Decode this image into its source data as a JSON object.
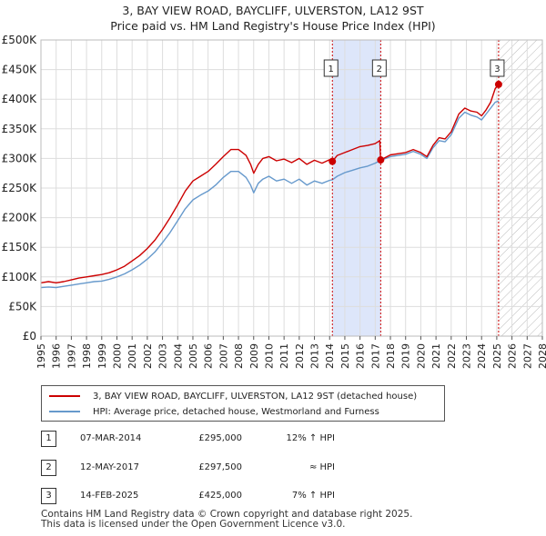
{
  "title": {
    "line1": "3, BAY VIEW ROAD, BAYCLIFF, ULVERSTON, LA12 9ST",
    "line2": "Price paid vs. HM Land Registry's House Price Index (HPI)"
  },
  "chart_data": {
    "type": "line",
    "xlim": [
      1995,
      2028
    ],
    "ylim": [
      0,
      500000
    ],
    "yticks": [
      {
        "value": 0,
        "label": "£0"
      },
      {
        "value": 50000,
        "label": "£50K"
      },
      {
        "value": 100000,
        "label": "£100K"
      },
      {
        "value": 150000,
        "label": "£150K"
      },
      {
        "value": 200000,
        "label": "£200K"
      },
      {
        "value": 250000,
        "label": "£250K"
      },
      {
        "value": 300000,
        "label": "£300K"
      },
      {
        "value": 350000,
        "label": "£350K"
      },
      {
        "value": 400000,
        "label": "£400K"
      },
      {
        "value": 450000,
        "label": "£450K"
      },
      {
        "value": 500000,
        "label": "£500K"
      }
    ],
    "xticks": [
      "1995",
      "1996",
      "1997",
      "1998",
      "1999",
      "2000",
      "2001",
      "2002",
      "2003",
      "2004",
      "2005",
      "2006",
      "2007",
      "2008",
      "2009",
      "2010",
      "2011",
      "2012",
      "2013",
      "2014",
      "2015",
      "2016",
      "2017",
      "2018",
      "2019",
      "2020",
      "2021",
      "2022",
      "2023",
      "2024",
      "2025",
      "2026",
      "2027",
      "2028"
    ],
    "grid": true,
    "highlight_band": {
      "from": 2014.18,
      "to": 2017.36
    },
    "future_hatch_from": 2025.12,
    "series": [
      {
        "name": "3, BAY VIEW ROAD, BAYCLIFF, ULVERSTON, LA12 9ST (detached house)",
        "color": "#cc0000",
        "points": [
          [
            1995.0,
            90000
          ],
          [
            1995.5,
            92000
          ],
          [
            1996.0,
            90000
          ],
          [
            1996.5,
            92000
          ],
          [
            1997.0,
            95000
          ],
          [
            1997.5,
            98000
          ],
          [
            1998.0,
            100000
          ],
          [
            1998.5,
            102000
          ],
          [
            1999.0,
            104000
          ],
          [
            1999.5,
            107000
          ],
          [
            2000.0,
            112000
          ],
          [
            2000.5,
            118000
          ],
          [
            2001.0,
            127000
          ],
          [
            2001.5,
            136000
          ],
          [
            2002.0,
            148000
          ],
          [
            2002.5,
            162000
          ],
          [
            2003.0,
            180000
          ],
          [
            2003.5,
            200000
          ],
          [
            2004.0,
            222000
          ],
          [
            2004.5,
            245000
          ],
          [
            2005.0,
            262000
          ],
          [
            2005.5,
            270000
          ],
          [
            2006.0,
            278000
          ],
          [
            2006.5,
            290000
          ],
          [
            2007.0,
            303000
          ],
          [
            2007.5,
            315000
          ],
          [
            2008.0,
            315000
          ],
          [
            2008.5,
            305000
          ],
          [
            2008.8,
            290000
          ],
          [
            2009.0,
            275000
          ],
          [
            2009.3,
            290000
          ],
          [
            2009.6,
            300000
          ],
          [
            2010.0,
            303000
          ],
          [
            2010.5,
            296000
          ],
          [
            2011.0,
            299000
          ],
          [
            2011.5,
            293000
          ],
          [
            2012.0,
            300000
          ],
          [
            2012.5,
            290000
          ],
          [
            2013.0,
            297000
          ],
          [
            2013.5,
            292000
          ],
          [
            2014.0,
            298000
          ],
          [
            2014.18,
            295000
          ],
          [
            2014.5,
            305000
          ],
          [
            2015.0,
            310000
          ],
          [
            2015.5,
            315000
          ],
          [
            2016.0,
            320000
          ],
          [
            2016.5,
            322000
          ],
          [
            2017.0,
            325000
          ],
          [
            2017.3,
            330000
          ],
          [
            2017.36,
            297500
          ],
          [
            2017.7,
            302000
          ],
          [
            2018.0,
            306000
          ],
          [
            2018.5,
            308000
          ],
          [
            2019.0,
            310000
          ],
          [
            2019.5,
            315000
          ],
          [
            2020.0,
            310000
          ],
          [
            2020.4,
            303000
          ],
          [
            2020.8,
            322000
          ],
          [
            2021.2,
            335000
          ],
          [
            2021.6,
            333000
          ],
          [
            2022.0,
            345000
          ],
          [
            2022.5,
            375000
          ],
          [
            2022.9,
            385000
          ],
          [
            2023.3,
            380000
          ],
          [
            2023.7,
            378000
          ],
          [
            2024.0,
            372000
          ],
          [
            2024.3,
            382000
          ],
          [
            2024.6,
            395000
          ],
          [
            2024.9,
            418000
          ],
          [
            2025.12,
            425000
          ]
        ]
      },
      {
        "name": "HPI: Average price, detached house, Westmorland and Furness",
        "color": "#6699cc",
        "points": [
          [
            1995.0,
            82000
          ],
          [
            1995.5,
            83000
          ],
          [
            1996.0,
            82000
          ],
          [
            1996.5,
            84000
          ],
          [
            1997.0,
            86000
          ],
          [
            1997.5,
            88000
          ],
          [
            1998.0,
            90000
          ],
          [
            1998.5,
            92000
          ],
          [
            1999.0,
            93000
          ],
          [
            1999.5,
            96000
          ],
          [
            2000.0,
            100000
          ],
          [
            2000.5,
            105000
          ],
          [
            2001.0,
            112000
          ],
          [
            2001.5,
            120000
          ],
          [
            2002.0,
            130000
          ],
          [
            2002.5,
            142000
          ],
          [
            2003.0,
            158000
          ],
          [
            2003.5,
            175000
          ],
          [
            2004.0,
            195000
          ],
          [
            2004.5,
            215000
          ],
          [
            2005.0,
            230000
          ],
          [
            2005.5,
            238000
          ],
          [
            2006.0,
            245000
          ],
          [
            2006.5,
            255000
          ],
          [
            2007.0,
            268000
          ],
          [
            2007.5,
            278000
          ],
          [
            2008.0,
            278000
          ],
          [
            2008.5,
            268000
          ],
          [
            2008.8,
            255000
          ],
          [
            2009.0,
            242000
          ],
          [
            2009.3,
            258000
          ],
          [
            2009.6,
            265000
          ],
          [
            2010.0,
            270000
          ],
          [
            2010.5,
            262000
          ],
          [
            2011.0,
            265000
          ],
          [
            2011.5,
            258000
          ],
          [
            2012.0,
            265000
          ],
          [
            2012.5,
            255000
          ],
          [
            2013.0,
            262000
          ],
          [
            2013.5,
            258000
          ],
          [
            2014.0,
            263000
          ],
          [
            2014.18,
            264000
          ],
          [
            2014.5,
            270000
          ],
          [
            2015.0,
            276000
          ],
          [
            2015.5,
            280000
          ],
          [
            2016.0,
            284000
          ],
          [
            2016.5,
            287000
          ],
          [
            2017.0,
            292000
          ],
          [
            2017.36,
            297000
          ],
          [
            2017.7,
            300000
          ],
          [
            2018.0,
            303000
          ],
          [
            2018.5,
            305000
          ],
          [
            2019.0,
            307000
          ],
          [
            2019.5,
            312000
          ],
          [
            2020.0,
            307000
          ],
          [
            2020.4,
            300000
          ],
          [
            2020.8,
            318000
          ],
          [
            2021.2,
            330000
          ],
          [
            2021.6,
            328000
          ],
          [
            2022.0,
            340000
          ],
          [
            2022.5,
            368000
          ],
          [
            2022.9,
            378000
          ],
          [
            2023.3,
            373000
          ],
          [
            2023.7,
            370000
          ],
          [
            2024.0,
            365000
          ],
          [
            2024.3,
            375000
          ],
          [
            2024.6,
            385000
          ],
          [
            2024.9,
            395000
          ],
          [
            2025.12,
            397000
          ]
        ]
      }
    ]
  },
  "legend": {
    "property_label": "3, BAY VIEW ROAD, BAYCLIFF, ULVERSTON, LA12 9ST (detached house)",
    "hpi_label": "HPI: Average price, detached house, Westmorland and Furness"
  },
  "sales": [
    {
      "num": "1",
      "date": "07-MAR-2014",
      "price": "£295,000",
      "hpi": "12% ↑ HPI",
      "year": 2014.18,
      "value": 295000
    },
    {
      "num": "2",
      "date": "12-MAY-2017",
      "price": "£297,500",
      "hpi": "≈ HPI",
      "year": 2017.36,
      "value": 297500
    },
    {
      "num": "3",
      "date": "14-FEB-2025",
      "price": "£425,000",
      "hpi": "7% ↑ HPI",
      "year": 2025.12,
      "value": 425000
    }
  ],
  "footer": {
    "line1": "Contains HM Land Registry data © Crown copyright and database right 2025.",
    "line2": "This data is licensed under the Open Government Licence v3.0."
  },
  "colors": {
    "property": "#cc0000",
    "hpi": "#6699cc",
    "band": "#dde6fa",
    "marker_line": "#cc0000",
    "grid": "#dddddd"
  }
}
